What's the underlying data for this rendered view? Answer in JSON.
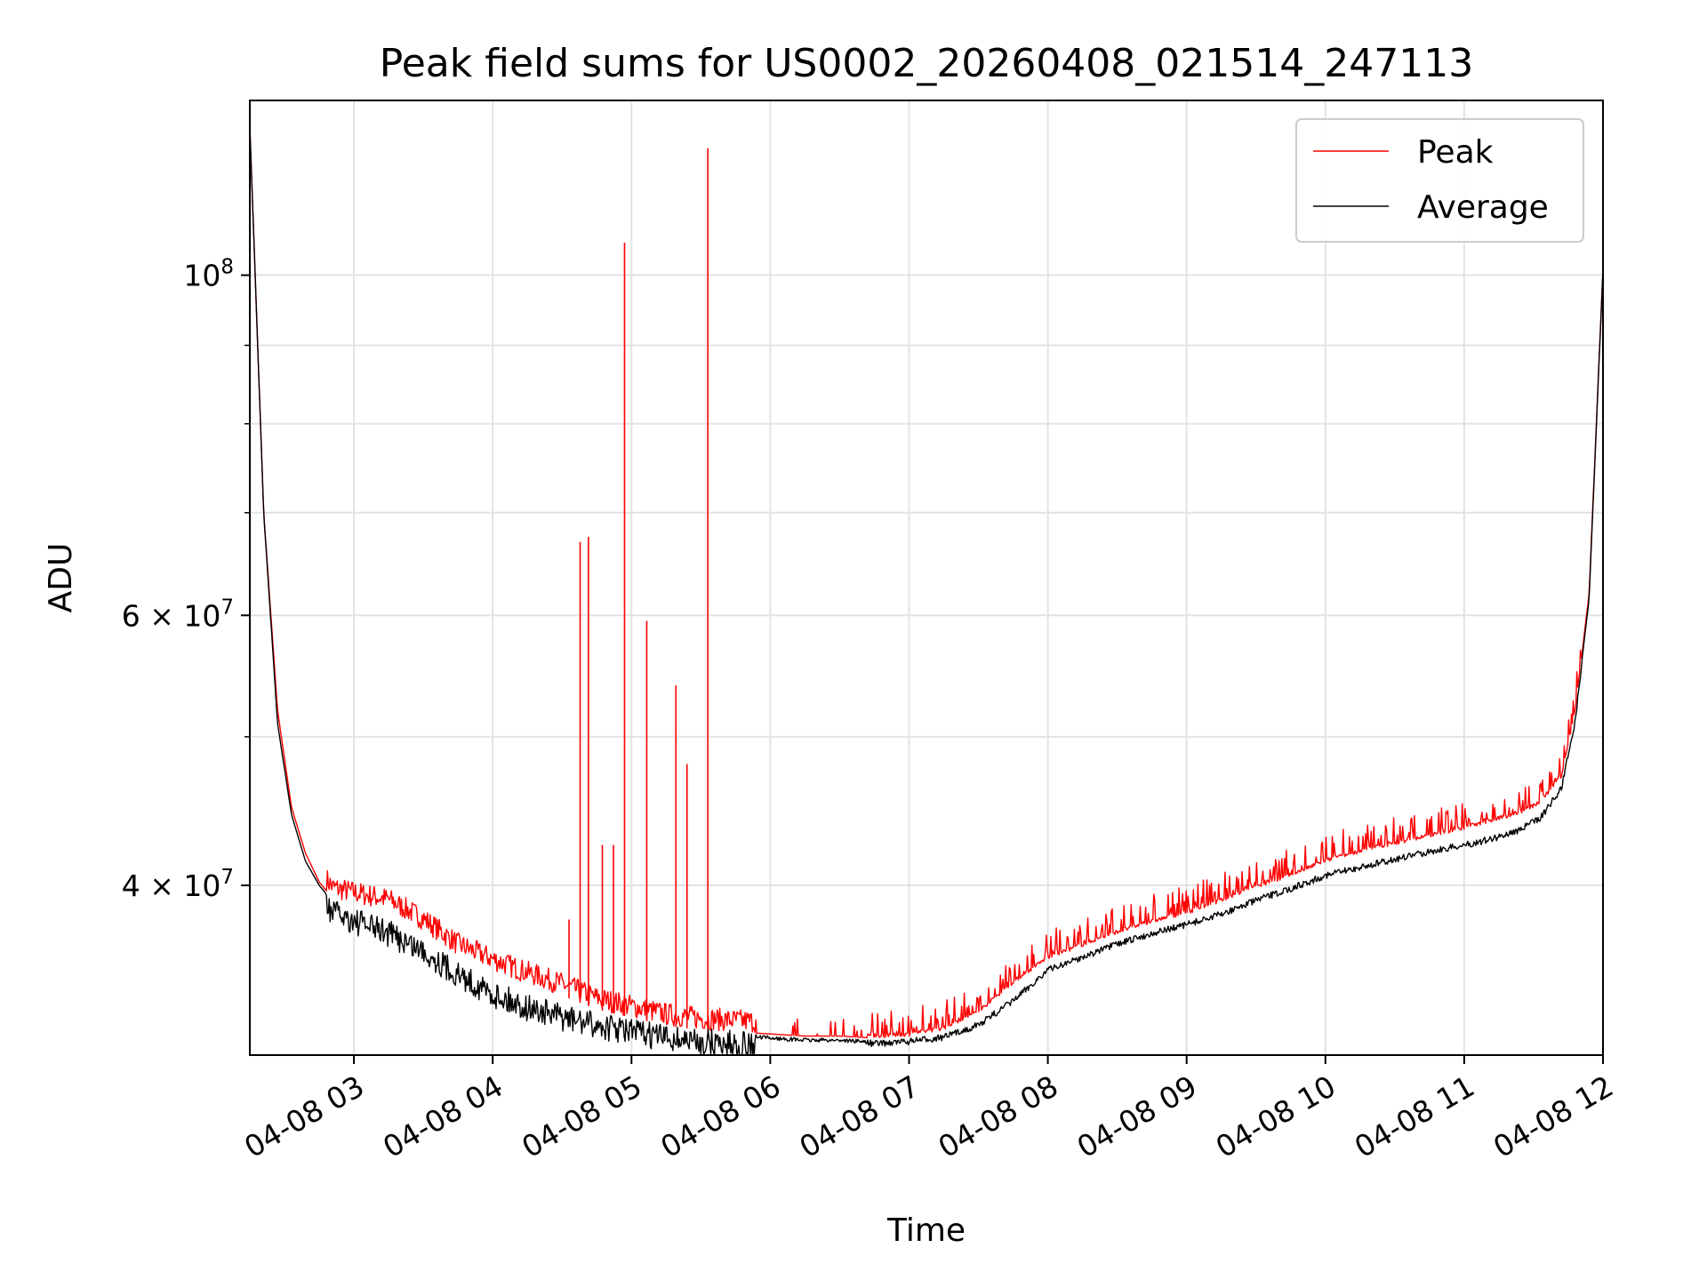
{
  "chart_data": {
    "type": "line",
    "title": "Peak field sums for US0002_20260408_021514_247113",
    "xlabel": "Time",
    "ylabel": "ADU",
    "yscale": "log",
    "xlim": [
      2.25,
      12.0
    ],
    "ylim": [
      31000000,
      130000000
    ],
    "grid": true,
    "legend_position": "top-right",
    "x_ticks": [
      3,
      4,
      5,
      6,
      7,
      8,
      9,
      10,
      11,
      12
    ],
    "x_tick_labels": [
      "04-08 03",
      "04-08 04",
      "04-08 05",
      "04-08 06",
      "04-08 07",
      "04-08 08",
      "04-08 09",
      "04-08 10",
      "04-08 11",
      "04-08 12"
    ],
    "y_major_ticks": [
      {
        "value": 100000000,
        "base": "10",
        "exp": "8"
      },
      {
        "value": 60000000,
        "base": "6 × 10",
        "exp": "7"
      },
      {
        "value": 40000000,
        "base": "4 × 10",
        "exp": "7"
      }
    ],
    "y_minor_ticks": [
      90000000,
      80000000,
      70000000,
      50000000
    ],
    "series": [
      {
        "name": "Peak",
        "color": "#ff0000",
        "x": [
          2.25,
          2.35,
          2.45,
          2.55,
          2.65,
          2.75,
          2.85,
          3.0,
          3.25,
          3.5,
          3.75,
          4.0,
          4.25,
          4.5,
          4.75,
          5.0,
          5.25,
          5.5,
          5.75,
          6.0,
          6.25,
          6.5,
          6.75,
          7.0,
          7.25,
          7.5,
          7.75,
          8.0,
          8.25,
          8.5,
          8.75,
          9.0,
          9.25,
          9.5,
          9.75,
          10.0,
          10.25,
          10.5,
          10.75,
          11.0,
          11.2,
          11.4,
          11.55,
          11.7,
          11.8,
          11.9,
          12.0
        ],
        "y": [
          125000000,
          70000000,
          52000000,
          45000000,
          42000000,
          40200000,
          39200000,
          38900000,
          38500000,
          37400000,
          36000000,
          35200000,
          34500000,
          33900000,
          33200000,
          32800000,
          32400000,
          32200000,
          32100000,
          32000000,
          31900000,
          31900000,
          31800000,
          31900000,
          32200000,
          33000000,
          34500000,
          35800000,
          36500000,
          37200000,
          37800000,
          38300000,
          39000000,
          39800000,
          40500000,
          41400000,
          42000000,
          42500000,
          43000000,
          43500000,
          44000000,
          44500000,
          45200000,
          47000000,
          52000000,
          62000000,
          101000000
        ],
        "spikes": [
          {
            "x": 4.55,
            "y": 38000000
          },
          {
            "x": 4.63,
            "y": 67000000
          },
          {
            "x": 4.69,
            "y": 67500000
          },
          {
            "x": 4.79,
            "y": 42500000
          },
          {
            "x": 4.87,
            "y": 42500000
          },
          {
            "x": 4.95,
            "y": 105000000
          },
          {
            "x": 5.11,
            "y": 59500000
          },
          {
            "x": 5.32,
            "y": 54000000
          },
          {
            "x": 5.4,
            "y": 48000000
          },
          {
            "x": 5.55,
            "y": 121000000
          }
        ]
      },
      {
        "name": "Average",
        "color": "#000000",
        "x": [
          2.25,
          2.35,
          2.45,
          2.55,
          2.65,
          2.75,
          2.85,
          3.0,
          3.25,
          3.5,
          3.75,
          4.0,
          4.25,
          4.5,
          4.75,
          5.0,
          5.25,
          5.5,
          5.75,
          6.0,
          6.25,
          6.5,
          6.75,
          7.0,
          7.25,
          7.5,
          7.75,
          8.0,
          8.25,
          8.5,
          8.75,
          9.0,
          9.25,
          9.5,
          9.75,
          10.0,
          10.25,
          10.5,
          10.75,
          11.0,
          11.2,
          11.4,
          11.55,
          11.7,
          11.8,
          11.9,
          12.0
        ],
        "y": [
          125000000,
          70000000,
          51000000,
          44500000,
          41500000,
          40000000,
          39000000,
          38500000,
          37800000,
          36800000,
          35500000,
          34500000,
          33800000,
          33300000,
          32900000,
          32600000,
          32300000,
          32100000,
          32000000,
          31900000,
          31800000,
          31800000,
          31700000,
          31800000,
          32000000,
          32600000,
          33800000,
          35400000,
          36100000,
          36800000,
          37400000,
          37900000,
          38500000,
          39300000,
          40000000,
          40800000,
          41300000,
          41800000,
          42300000,
          42700000,
          43100000,
          43700000,
          44500000,
          46500000,
          51500000,
          61500000,
          101000000
        ]
      }
    ]
  }
}
